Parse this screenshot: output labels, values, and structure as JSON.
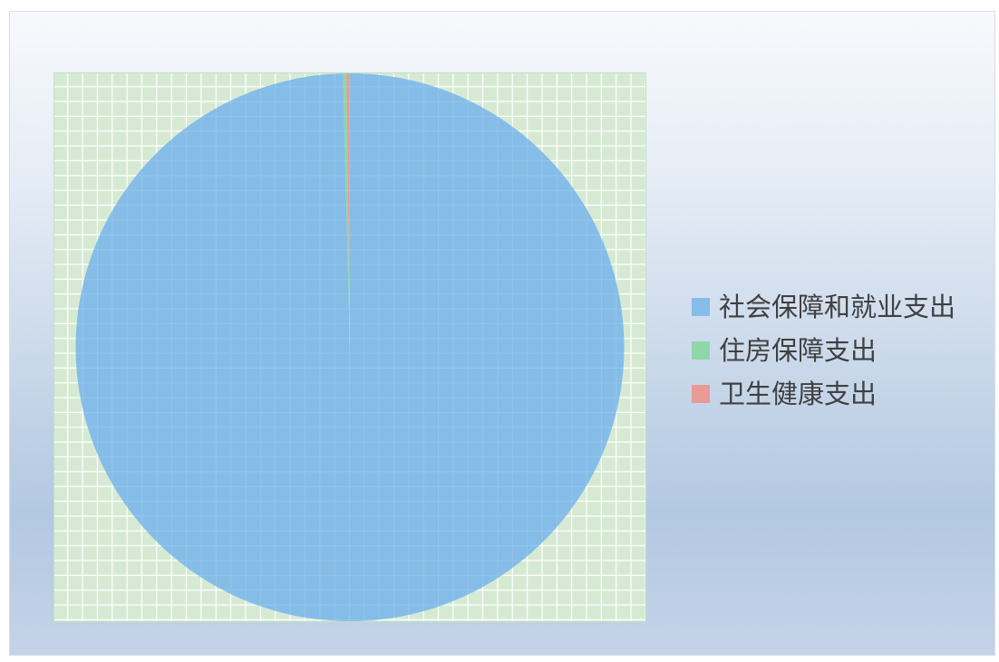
{
  "chart_data": {
    "type": "pie",
    "title": "",
    "categories": [
      "社会保障和就业支出",
      "住房保障支出",
      "卫生健康支出"
    ],
    "values": [
      99.6,
      0.2,
      0.2
    ],
    "colors": [
      "#85bde8",
      "#8fd6a8",
      "#e89a94"
    ],
    "start_angle_deg": 90,
    "direction": "clockwise",
    "legend_position": "right",
    "plot_background": "#d6ead3",
    "plot_grid": true,
    "grid_color": "#ffffff"
  },
  "legend": {
    "items": [
      {
        "label": "社会保障和就业支出",
        "color": "#85bde8"
      },
      {
        "label": "住房保障支出",
        "color": "#8fd6a8"
      },
      {
        "label": "卫生健康支出",
        "color": "#e89a94"
      }
    ]
  }
}
